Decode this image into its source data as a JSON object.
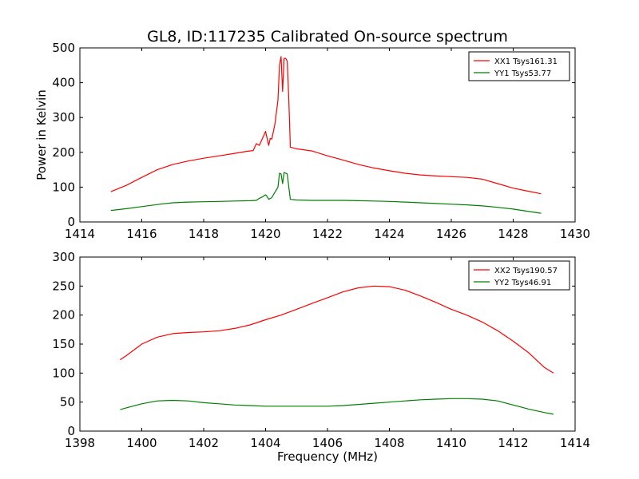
{
  "title": "GL8, ID:117235 Calibrated On-source spectrum",
  "colors": {
    "XX": "#ff0000",
    "YY": "#007f00"
  },
  "chart_data": [
    {
      "type": "line",
      "xlabel": "",
      "ylabel": "Power in Kelvin",
      "xlim": [
        1414,
        1430
      ],
      "ylim": [
        0,
        500
      ],
      "xticks": [
        1414,
        1416,
        1418,
        1420,
        1422,
        1424,
        1426,
        1428,
        1430
      ],
      "yticks": [
        0,
        100,
        200,
        300,
        400,
        500
      ],
      "legend_position": "top-right",
      "series": [
        {
          "name": "XX1 Tsys161.31",
          "color": "#ff0000",
          "x": [
            1415.0,
            1415.5,
            1416.0,
            1416.5,
            1417.0,
            1417.5,
            1418.0,
            1418.5,
            1419.0,
            1419.4,
            1419.6,
            1419.7,
            1419.8,
            1419.9,
            1420.0,
            1420.05,
            1420.1,
            1420.15,
            1420.2,
            1420.3,
            1420.4,
            1420.45,
            1420.5,
            1420.55,
            1420.6,
            1420.65,
            1420.7,
            1420.75,
            1420.8,
            1421.0,
            1421.5,
            1422.0,
            1422.5,
            1423.0,
            1423.5,
            1424.0,
            1424.5,
            1425.0,
            1425.5,
            1426.0,
            1426.5,
            1427.0,
            1427.5,
            1428.0,
            1428.5,
            1428.9
          ],
          "y": [
            87,
            105,
            128,
            150,
            165,
            175,
            183,
            190,
            197,
            203,
            205,
            225,
            220,
            240,
            260,
            240,
            220,
            240,
            238,
            280,
            350,
            450,
            475,
            375,
            470,
            470,
            462,
            350,
            215,
            210,
            204,
            190,
            178,
            165,
            155,
            147,
            140,
            135,
            132,
            130,
            128,
            123,
            110,
            97,
            88,
            81
          ]
        },
        {
          "name": "YY1 Tsys53.77",
          "color": "#007f00",
          "x": [
            1415.0,
            1415.5,
            1416.0,
            1416.5,
            1417.0,
            1417.5,
            1418.0,
            1418.5,
            1419.0,
            1419.5,
            1419.7,
            1419.8,
            1419.9,
            1420.0,
            1420.05,
            1420.1,
            1420.2,
            1420.3,
            1420.4,
            1420.45,
            1420.5,
            1420.55,
            1420.6,
            1420.65,
            1420.7,
            1420.75,
            1420.8,
            1421.0,
            1421.5,
            1422.0,
            1422.5,
            1423.0,
            1423.5,
            1424.0,
            1424.5,
            1425.0,
            1425.5,
            1426.0,
            1426.5,
            1427.0,
            1427.5,
            1428.0,
            1428.5,
            1428.9
          ],
          "y": [
            33,
            38,
            44,
            50,
            55,
            57,
            58,
            59,
            60,
            61,
            62,
            68,
            72,
            78,
            73,
            65,
            70,
            85,
            100,
            140,
            138,
            110,
            142,
            140,
            138,
            100,
            65,
            63,
            62,
            62,
            62,
            61,
            60,
            59,
            57,
            55,
            53,
            51,
            49,
            46,
            42,
            37,
            30,
            25
          ]
        }
      ]
    },
    {
      "type": "line",
      "xlabel": "Frequency (MHz)",
      "ylabel": "",
      "xlim": [
        1398,
        1414
      ],
      "ylim": [
        0,
        300
      ],
      "xticks": [
        1398,
        1400,
        1402,
        1404,
        1406,
        1408,
        1410,
        1412,
        1414
      ],
      "yticks": [
        0,
        50,
        100,
        150,
        200,
        250,
        300
      ],
      "legend_position": "top-right",
      "series": [
        {
          "name": "XX2 Tsys190.57",
          "color": "#ff0000",
          "x": [
            1399.3,
            1399.5,
            1400.0,
            1400.5,
            1401.0,
            1401.5,
            1402.0,
            1402.5,
            1403.0,
            1403.5,
            1404.0,
            1404.5,
            1405.0,
            1405.5,
            1406.0,
            1406.5,
            1407.0,
            1407.5,
            1408.0,
            1408.5,
            1409.0,
            1409.5,
            1410.0,
            1410.5,
            1411.0,
            1411.5,
            1412.0,
            1412.5,
            1413.0,
            1413.3
          ],
          "y": [
            123,
            130,
            150,
            162,
            168,
            170,
            171,
            173,
            177,
            183,
            192,
            200,
            210,
            220,
            230,
            240,
            247,
            250,
            249,
            243,
            233,
            222,
            210,
            200,
            188,
            173,
            155,
            135,
            110,
            100
          ]
        },
        {
          "name": "YY2 Tsys46.91",
          "color": "#007f00",
          "x": [
            1399.3,
            1399.5,
            1400.0,
            1400.5,
            1401.0,
            1401.5,
            1402.0,
            1402.5,
            1403.0,
            1403.5,
            1404.0,
            1404.5,
            1405.0,
            1405.5,
            1406.0,
            1406.5,
            1407.0,
            1407.5,
            1408.0,
            1408.5,
            1409.0,
            1409.5,
            1410.0,
            1410.5,
            1411.0,
            1411.5,
            1412.0,
            1412.5,
            1413.0,
            1413.3
          ],
          "y": [
            37,
            40,
            47,
            52,
            53,
            52,
            49,
            47,
            45,
            44,
            43,
            43,
            43,
            43,
            43,
            44,
            46,
            48,
            50,
            52,
            54,
            55,
            56,
            56,
            55,
            52,
            45,
            38,
            32,
            29
          ]
        }
      ]
    }
  ]
}
